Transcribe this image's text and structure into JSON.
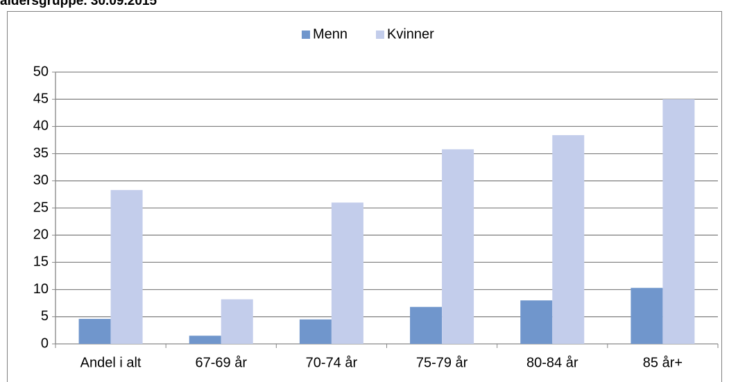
{
  "chart_data": {
    "type": "bar",
    "title": "aldersgruppe. 30.09.2015",
    "categories": [
      "Andel i alt",
      "67-69 år",
      "70-74 år",
      "75-79 år",
      "80-84 år",
      "85 år+"
    ],
    "series": [
      {
        "name": "Menn",
        "color": "#7096cc",
        "values": [
          4.6,
          1.5,
          4.5,
          6.8,
          8.0,
          10.3
        ]
      },
      {
        "name": "Kvinner",
        "color": "#c3cdeb",
        "values": [
          28.3,
          8.2,
          26.0,
          35.8,
          38.4,
          45.0
        ]
      }
    ],
    "ylim": [
      0,
      50
    ],
    "yticks": [
      0,
      5,
      10,
      15,
      20,
      25,
      30,
      35,
      40,
      45,
      50
    ],
    "grid": true,
    "legend": "top"
  }
}
